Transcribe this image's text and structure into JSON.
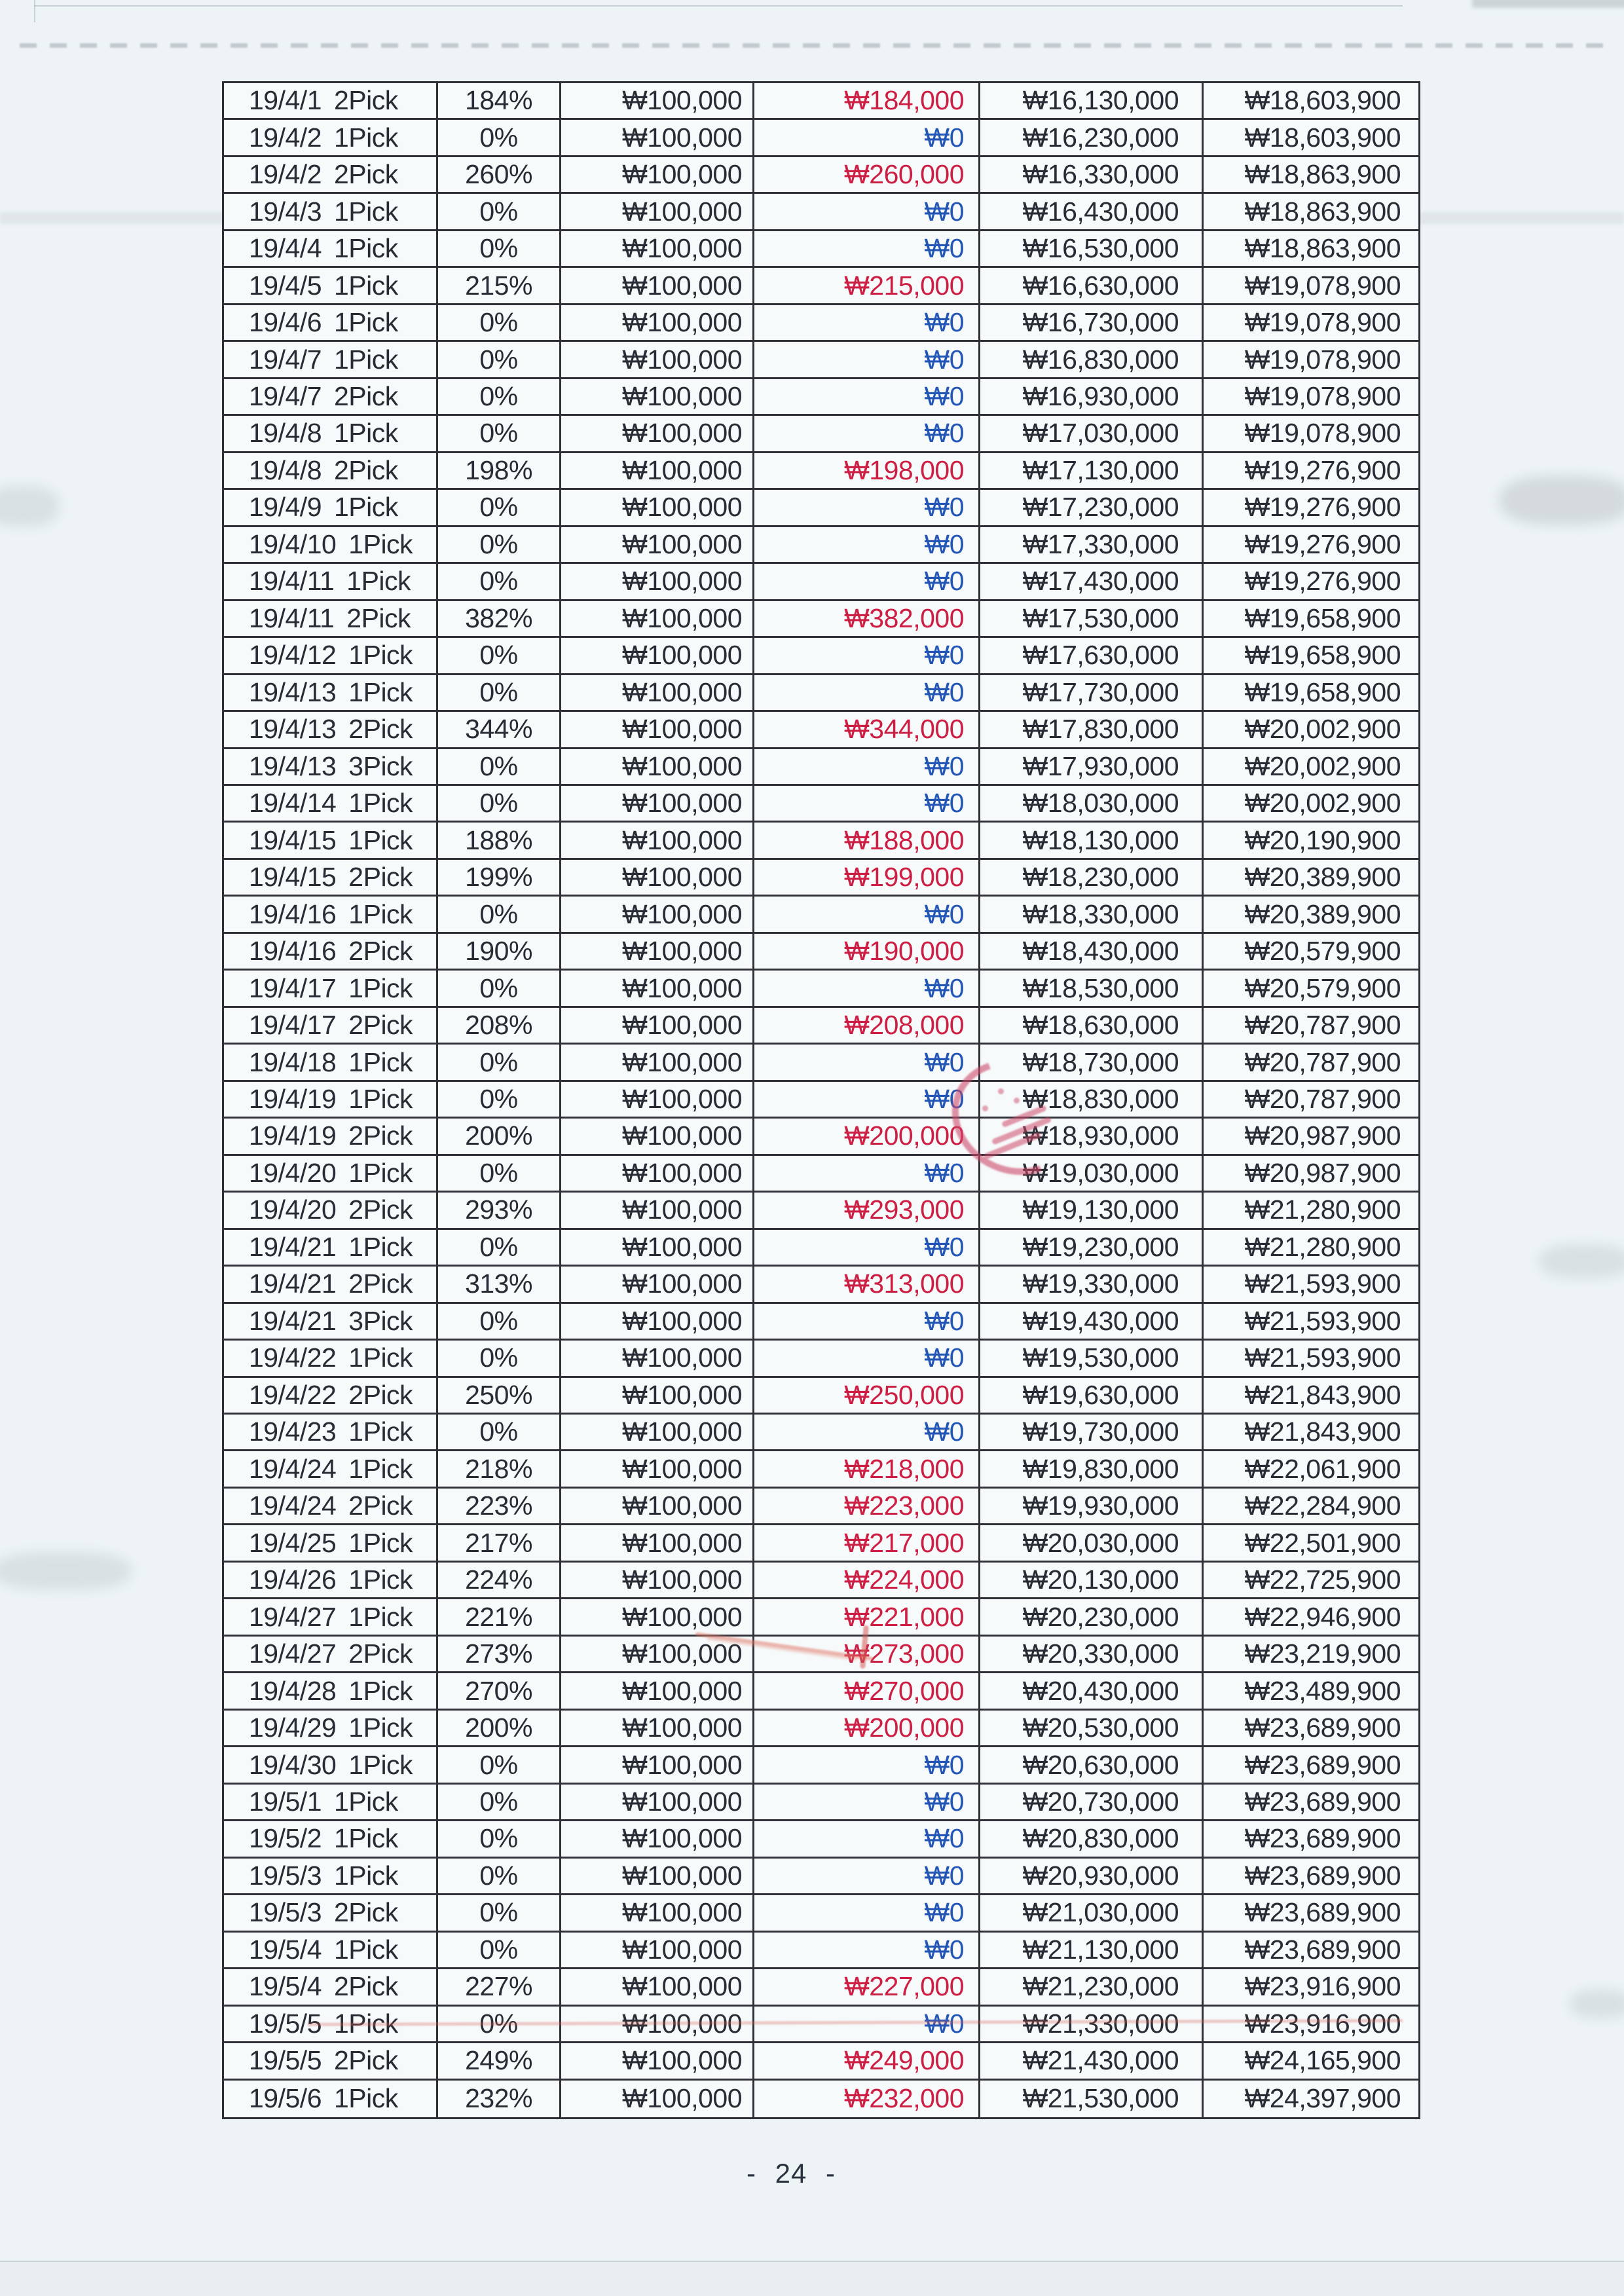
{
  "page": {
    "number_label": "- 24 -"
  },
  "colors": {
    "ink": "#282c34",
    "result_gain": "#cd1f43",
    "result_zero": "#2456b5"
  },
  "table": {
    "zero_result": "₩0",
    "columns": [
      "date_pick",
      "rate",
      "bet",
      "result",
      "cum_bet",
      "cum_total"
    ],
    "rows": [
      {
        "date": "19/4/1",
        "pick": "2Pick",
        "rate": "184%",
        "bet": "₩100,000",
        "result": "₩184,000",
        "cum_bet": "₩16,130,000",
        "cum_total": "₩18,603,900"
      },
      {
        "date": "19/4/2",
        "pick": "1Pick",
        "rate": "0%",
        "bet": "₩100,000",
        "result": "₩0",
        "cum_bet": "₩16,230,000",
        "cum_total": "₩18,603,900"
      },
      {
        "date": "19/4/2",
        "pick": "2Pick",
        "rate": "260%",
        "bet": "₩100,000",
        "result": "₩260,000",
        "cum_bet": "₩16,330,000",
        "cum_total": "₩18,863,900"
      },
      {
        "date": "19/4/3",
        "pick": "1Pick",
        "rate": "0%",
        "bet": "₩100,000",
        "result": "₩0",
        "cum_bet": "₩16,430,000",
        "cum_total": "₩18,863,900"
      },
      {
        "date": "19/4/4",
        "pick": "1Pick",
        "rate": "0%",
        "bet": "₩100,000",
        "result": "₩0",
        "cum_bet": "₩16,530,000",
        "cum_total": "₩18,863,900"
      },
      {
        "date": "19/4/5",
        "pick": "1Pick",
        "rate": "215%",
        "bet": "₩100,000",
        "result": "₩215,000",
        "cum_bet": "₩16,630,000",
        "cum_total": "₩19,078,900"
      },
      {
        "date": "19/4/6",
        "pick": "1Pick",
        "rate": "0%",
        "bet": "₩100,000",
        "result": "₩0",
        "cum_bet": "₩16,730,000",
        "cum_total": "₩19,078,900"
      },
      {
        "date": "19/4/7",
        "pick": "1Pick",
        "rate": "0%",
        "bet": "₩100,000",
        "result": "₩0",
        "cum_bet": "₩16,830,000",
        "cum_total": "₩19,078,900"
      },
      {
        "date": "19/4/7",
        "pick": "2Pick",
        "rate": "0%",
        "bet": "₩100,000",
        "result": "₩0",
        "cum_bet": "₩16,930,000",
        "cum_total": "₩19,078,900"
      },
      {
        "date": "19/4/8",
        "pick": "1Pick",
        "rate": "0%",
        "bet": "₩100,000",
        "result": "₩0",
        "cum_bet": "₩17,030,000",
        "cum_total": "₩19,078,900"
      },
      {
        "date": "19/4/8",
        "pick": "2Pick",
        "rate": "198%",
        "bet": "₩100,000",
        "result": "₩198,000",
        "cum_bet": "₩17,130,000",
        "cum_total": "₩19,276,900"
      },
      {
        "date": "19/4/9",
        "pick": "1Pick",
        "rate": "0%",
        "bet": "₩100,000",
        "result": "₩0",
        "cum_bet": "₩17,230,000",
        "cum_total": "₩19,276,900"
      },
      {
        "date": "19/4/10",
        "pick": "1Pick",
        "rate": "0%",
        "bet": "₩100,000",
        "result": "₩0",
        "cum_bet": "₩17,330,000",
        "cum_total": "₩19,276,900"
      },
      {
        "date": "19/4/11",
        "pick": "1Pick",
        "rate": "0%",
        "bet": "₩100,000",
        "result": "₩0",
        "cum_bet": "₩17,430,000",
        "cum_total": "₩19,276,900"
      },
      {
        "date": "19/4/11",
        "pick": "2Pick",
        "rate": "382%",
        "bet": "₩100,000",
        "result": "₩382,000",
        "cum_bet": "₩17,530,000",
        "cum_total": "₩19,658,900"
      },
      {
        "date": "19/4/12",
        "pick": "1Pick",
        "rate": "0%",
        "bet": "₩100,000",
        "result": "₩0",
        "cum_bet": "₩17,630,000",
        "cum_total": "₩19,658,900"
      },
      {
        "date": "19/4/13",
        "pick": "1Pick",
        "rate": "0%",
        "bet": "₩100,000",
        "result": "₩0",
        "cum_bet": "₩17,730,000",
        "cum_total": "₩19,658,900"
      },
      {
        "date": "19/4/13",
        "pick": "2Pick",
        "rate": "344%",
        "bet": "₩100,000",
        "result": "₩344,000",
        "cum_bet": "₩17,830,000",
        "cum_total": "₩20,002,900"
      },
      {
        "date": "19/4/13",
        "pick": "3Pick",
        "rate": "0%",
        "bet": "₩100,000",
        "result": "₩0",
        "cum_bet": "₩17,930,000",
        "cum_total": "₩20,002,900"
      },
      {
        "date": "19/4/14",
        "pick": "1Pick",
        "rate": "0%",
        "bet": "₩100,000",
        "result": "₩0",
        "cum_bet": "₩18,030,000",
        "cum_total": "₩20,002,900"
      },
      {
        "date": "19/4/15",
        "pick": "1Pick",
        "rate": "188%",
        "bet": "₩100,000",
        "result": "₩188,000",
        "cum_bet": "₩18,130,000",
        "cum_total": "₩20,190,900"
      },
      {
        "date": "19/4/15",
        "pick": "2Pick",
        "rate": "199%",
        "bet": "₩100,000",
        "result": "₩199,000",
        "cum_bet": "₩18,230,000",
        "cum_total": "₩20,389,900"
      },
      {
        "date": "19/4/16",
        "pick": "1Pick",
        "rate": "0%",
        "bet": "₩100,000",
        "result": "₩0",
        "cum_bet": "₩18,330,000",
        "cum_total": "₩20,389,900"
      },
      {
        "date": "19/4/16",
        "pick": "2Pick",
        "rate": "190%",
        "bet": "₩100,000",
        "result": "₩190,000",
        "cum_bet": "₩18,430,000",
        "cum_total": "₩20,579,900"
      },
      {
        "date": "19/4/17",
        "pick": "1Pick",
        "rate": "0%",
        "bet": "₩100,000",
        "result": "₩0",
        "cum_bet": "₩18,530,000",
        "cum_total": "₩20,579,900"
      },
      {
        "date": "19/4/17",
        "pick": "2Pick",
        "rate": "208%",
        "bet": "₩100,000",
        "result": "₩208,000",
        "cum_bet": "₩18,630,000",
        "cum_total": "₩20,787,900"
      },
      {
        "date": "19/4/18",
        "pick": "1Pick",
        "rate": "0%",
        "bet": "₩100,000",
        "result": "₩0",
        "cum_bet": "₩18,730,000",
        "cum_total": "₩20,787,900"
      },
      {
        "date": "19/4/19",
        "pick": "1Pick",
        "rate": "0%",
        "bet": "₩100,000",
        "result": "₩0",
        "cum_bet": "₩18,830,000",
        "cum_total": "₩20,787,900"
      },
      {
        "date": "19/4/19",
        "pick": "2Pick",
        "rate": "200%",
        "bet": "₩100,000",
        "result": "₩200,000",
        "cum_bet": "₩18,930,000",
        "cum_total": "₩20,987,900"
      },
      {
        "date": "19/4/20",
        "pick": "1Pick",
        "rate": "0%",
        "bet": "₩100,000",
        "result": "₩0",
        "cum_bet": "₩19,030,000",
        "cum_total": "₩20,987,900"
      },
      {
        "date": "19/4/20",
        "pick": "2Pick",
        "rate": "293%",
        "bet": "₩100,000",
        "result": "₩293,000",
        "cum_bet": "₩19,130,000",
        "cum_total": "₩21,280,900"
      },
      {
        "date": "19/4/21",
        "pick": "1Pick",
        "rate": "0%",
        "bet": "₩100,000",
        "result": "₩0",
        "cum_bet": "₩19,230,000",
        "cum_total": "₩21,280,900"
      },
      {
        "date": "19/4/21",
        "pick": "2Pick",
        "rate": "313%",
        "bet": "₩100,000",
        "result": "₩313,000",
        "cum_bet": "₩19,330,000",
        "cum_total": "₩21,593,900"
      },
      {
        "date": "19/4/21",
        "pick": "3Pick",
        "rate": "0%",
        "bet": "₩100,000",
        "result": "₩0",
        "cum_bet": "₩19,430,000",
        "cum_total": "₩21,593,900"
      },
      {
        "date": "19/4/22",
        "pick": "1Pick",
        "rate": "0%",
        "bet": "₩100,000",
        "result": "₩0",
        "cum_bet": "₩19,530,000",
        "cum_total": "₩21,593,900"
      },
      {
        "date": "19/4/22",
        "pick": "2Pick",
        "rate": "250%",
        "bet": "₩100,000",
        "result": "₩250,000",
        "cum_bet": "₩19,630,000",
        "cum_total": "₩21,843,900"
      },
      {
        "date": "19/4/23",
        "pick": "1Pick",
        "rate": "0%",
        "bet": "₩100,000",
        "result": "₩0",
        "cum_bet": "₩19,730,000",
        "cum_total": "₩21,843,900"
      },
      {
        "date": "19/4/24",
        "pick": "1Pick",
        "rate": "218%",
        "bet": "₩100,000",
        "result": "₩218,000",
        "cum_bet": "₩19,830,000",
        "cum_total": "₩22,061,900"
      },
      {
        "date": "19/4/24",
        "pick": "2Pick",
        "rate": "223%",
        "bet": "₩100,000",
        "result": "₩223,000",
        "cum_bet": "₩19,930,000",
        "cum_total": "₩22,284,900"
      },
      {
        "date": "19/4/25",
        "pick": "1Pick",
        "rate": "217%",
        "bet": "₩100,000",
        "result": "₩217,000",
        "cum_bet": "₩20,030,000",
        "cum_total": "₩22,501,900"
      },
      {
        "date": "19/4/26",
        "pick": "1Pick",
        "rate": "224%",
        "bet": "₩100,000",
        "result": "₩224,000",
        "cum_bet": "₩20,130,000",
        "cum_total": "₩22,725,900"
      },
      {
        "date": "19/4/27",
        "pick": "1Pick",
        "rate": "221%",
        "bet": "₩100,000",
        "result": "₩221,000",
        "cum_bet": "₩20,230,000",
        "cum_total": "₩22,946,900"
      },
      {
        "date": "19/4/27",
        "pick": "2Pick",
        "rate": "273%",
        "bet": "₩100,000",
        "result": "₩273,000",
        "cum_bet": "₩20,330,000",
        "cum_total": "₩23,219,900"
      },
      {
        "date": "19/4/28",
        "pick": "1Pick",
        "rate": "270%",
        "bet": "₩100,000",
        "result": "₩270,000",
        "cum_bet": "₩20,430,000",
        "cum_total": "₩23,489,900"
      },
      {
        "date": "19/4/29",
        "pick": "1Pick",
        "rate": "200%",
        "bet": "₩100,000",
        "result": "₩200,000",
        "cum_bet": "₩20,530,000",
        "cum_total": "₩23,689,900"
      },
      {
        "date": "19/4/30",
        "pick": "1Pick",
        "rate": "0%",
        "bet": "₩100,000",
        "result": "₩0",
        "cum_bet": "₩20,630,000",
        "cum_total": "₩23,689,900"
      },
      {
        "date": "19/5/1",
        "pick": "1Pick",
        "rate": "0%",
        "bet": "₩100,000",
        "result": "₩0",
        "cum_bet": "₩20,730,000",
        "cum_total": "₩23,689,900"
      },
      {
        "date": "19/5/2",
        "pick": "1Pick",
        "rate": "0%",
        "bet": "₩100,000",
        "result": "₩0",
        "cum_bet": "₩20,830,000",
        "cum_total": "₩23,689,900"
      },
      {
        "date": "19/5/3",
        "pick": "1Pick",
        "rate": "0%",
        "bet": "₩100,000",
        "result": "₩0",
        "cum_bet": "₩20,930,000",
        "cum_total": "₩23,689,900"
      },
      {
        "date": "19/5/3",
        "pick": "2Pick",
        "rate": "0%",
        "bet": "₩100,000",
        "result": "₩0",
        "cum_bet": "₩21,030,000",
        "cum_total": "₩23,689,900"
      },
      {
        "date": "19/5/4",
        "pick": "1Pick",
        "rate": "0%",
        "bet": "₩100,000",
        "result": "₩0",
        "cum_bet": "₩21,130,000",
        "cum_total": "₩23,689,900"
      },
      {
        "date": "19/5/4",
        "pick": "2Pick",
        "rate": "227%",
        "bet": "₩100,000",
        "result": "₩227,000",
        "cum_bet": "₩21,230,000",
        "cum_total": "₩23,916,900"
      },
      {
        "date": "19/5/5",
        "pick": "1Pick",
        "rate": "0%",
        "bet": "₩100,000",
        "result": "₩0",
        "cum_bet": "₩21,330,000",
        "cum_total": "₩23,916,900"
      },
      {
        "date": "19/5/5",
        "pick": "2Pick",
        "rate": "249%",
        "bet": "₩100,000",
        "result": "₩249,000",
        "cum_bet": "₩21,430,000",
        "cum_total": "₩24,165,900"
      },
      {
        "date": "19/5/6",
        "pick": "1Pick",
        "rate": "232%",
        "bet": "₩100,000",
        "result": "₩232,000",
        "cum_bet": "₩21,530,000",
        "cum_total": "₩24,397,900"
      }
    ]
  }
}
